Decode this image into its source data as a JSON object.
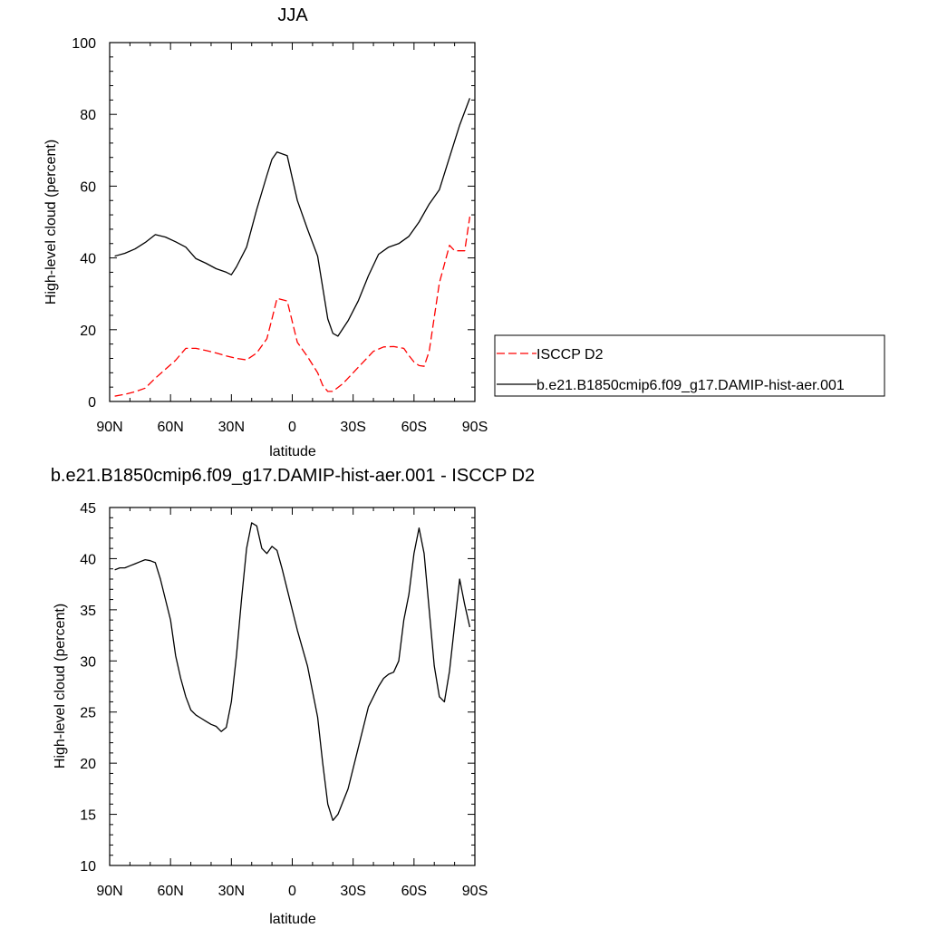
{
  "chart_data": [
    {
      "type": "line",
      "title": "JJA",
      "xlabel": "latitude",
      "ylabel": "High-level cloud (percent)",
      "xlim": [
        90,
        -90
      ],
      "ylim": [
        0,
        100
      ],
      "xticks": [
        90,
        60,
        30,
        0,
        -30,
        -60,
        -90
      ],
      "xtick_labels": [
        "90N",
        "60N",
        "30N",
        "0",
        "30S",
        "60S",
        "90S"
      ],
      "yticks": [
        0,
        20,
        40,
        60,
        80,
        100
      ],
      "ytick_labels": [
        "0",
        "20",
        "40",
        "60",
        "80",
        "100"
      ],
      "legend_position": "right",
      "series": [
        {
          "name": "ISCCP D2",
          "color": "#ff0000",
          "dash": "dashed",
          "x": [
            87.5,
            82.5,
            77.5,
            72.5,
            67.5,
            62.5,
            57.5,
            52.5,
            47.5,
            42.5,
            37.5,
            32.5,
            27.5,
            22.5,
            17.5,
            12.5,
            10,
            7.5,
            2.5,
            -2.5,
            -7.5,
            -12.5,
            -15,
            -17.5,
            -20,
            -25,
            -30,
            -35,
            -40,
            -45,
            -50,
            -55,
            -57.5,
            -60,
            -62.5,
            -65,
            -67.5,
            -72.5,
            -77.5,
            -80,
            -82.5,
            -85,
            -87.5
          ],
          "y": [
            1.5,
            2.0,
            2.7,
            3.7,
            6.5,
            9.0,
            11.5,
            14.8,
            14.8,
            14.2,
            13.5,
            12.7,
            12.0,
            11.6,
            13.5,
            17.5,
            23.0,
            28.7,
            28.0,
            16.5,
            12.5,
            8.0,
            4.5,
            2.8,
            2.8,
            5.0,
            8.0,
            11.0,
            14.0,
            15.2,
            15.3,
            14.8,
            12.8,
            11.0,
            10.0,
            9.8,
            14.0,
            33.0,
            43.5,
            42.0,
            42.0,
            42.0,
            51.5
          ]
        },
        {
          "name": "b.e21.B1850cmip6.f09_g17.DAMIP-hist-aer.001",
          "color": "#000000",
          "dash": "solid",
          "x": [
            87.5,
            82.5,
            77.5,
            72.5,
            67.5,
            62.5,
            57.5,
            52.5,
            47.5,
            42.5,
            37.5,
            32.5,
            30,
            27.5,
            22.5,
            17.5,
            12.5,
            10,
            7.5,
            2.5,
            -2.5,
            -7.5,
            -12.5,
            -17.5,
            -20,
            -22.5,
            -27.5,
            -32.5,
            -37.5,
            -42.5,
            -47.5,
            -52.5,
            -57.5,
            -62.5,
            -67.5,
            -72.5,
            -77.5,
            -82.5,
            -87.5
          ],
          "y": [
            40.5,
            41.3,
            42.5,
            44.3,
            46.5,
            45.8,
            44.5,
            43.0,
            39.8,
            38.5,
            37.0,
            36.0,
            35.3,
            37.5,
            43.0,
            53.5,
            63.0,
            67.5,
            69.5,
            68.5,
            56.0,
            48.0,
            40.5,
            23.0,
            19.0,
            18.2,
            22.5,
            28.0,
            35.0,
            41.0,
            43.0,
            44.0,
            46.0,
            50.0,
            55.0,
            59.0,
            68.0,
            77.0,
            84.5
          ]
        }
      ]
    },
    {
      "type": "line",
      "title": "b.e21.B1850cmip6.f09_g17.DAMIP-hist-aer.001 - ISCCP D2",
      "xlabel": "latitude",
      "ylabel": "High-level cloud (percent)",
      "xlim": [
        90,
        -90
      ],
      "ylim": [
        10,
        45
      ],
      "xticks": [
        90,
        60,
        30,
        0,
        -30,
        -60,
        -90
      ],
      "xtick_labels": [
        "90N",
        "60N",
        "30N",
        "0",
        "30S",
        "60S",
        "90S"
      ],
      "yticks": [
        10,
        15,
        20,
        25,
        30,
        35,
        40,
        45
      ],
      "ytick_labels": [
        "10",
        "15",
        "20",
        "25",
        "30",
        "35",
        "40",
        "45"
      ],
      "series": [
        {
          "color": "#000000",
          "dash": "solid",
          "x": [
            87.5,
            85,
            82.5,
            80,
            77.5,
            75,
            72.5,
            70,
            67.5,
            65,
            62.5,
            60,
            57.5,
            55,
            52.5,
            50,
            47.5,
            45,
            42.5,
            40,
            37.5,
            35,
            32.5,
            30,
            27.5,
            25,
            22.5,
            20,
            17.5,
            15,
            12.5,
            10,
            7.5,
            5,
            2.5,
            0,
            -2.5,
            -7.5,
            -12.5,
            -15,
            -17.5,
            -20,
            -22.5,
            -27.5,
            -32.5,
            -37.5,
            -42.5,
            -45,
            -47.5,
            -50,
            -52.5,
            -55,
            -57.5,
            -60,
            -62.5,
            -65,
            -67.5,
            -70,
            -72.5,
            -75,
            -77.5,
            -80,
            -82.5,
            -85,
            -87.5
          ],
          "y": [
            38.9,
            39.1,
            39.1,
            39.3,
            39.5,
            39.7,
            39.9,
            39.8,
            39.6,
            38.0,
            36.0,
            34.0,
            30.5,
            28.3,
            26.5,
            25.2,
            24.7,
            24.4,
            24.1,
            23.8,
            23.6,
            23.1,
            23.5,
            26.0,
            30.5,
            36.0,
            41.0,
            43.5,
            43.2,
            41.0,
            40.5,
            41.2,
            40.8,
            39.0,
            37.0,
            35.0,
            33.0,
            29.5,
            24.5,
            20.0,
            16.0,
            14.4,
            15.0,
            17.5,
            21.5,
            25.5,
            27.5,
            28.3,
            28.7,
            28.9,
            30.0,
            34.0,
            36.5,
            40.5,
            43.0,
            40.5,
            35.0,
            29.5,
            26.5,
            26.0,
            29.0,
            33.5,
            38.0,
            35.5,
            33.3
          ]
        }
      ]
    }
  ]
}
